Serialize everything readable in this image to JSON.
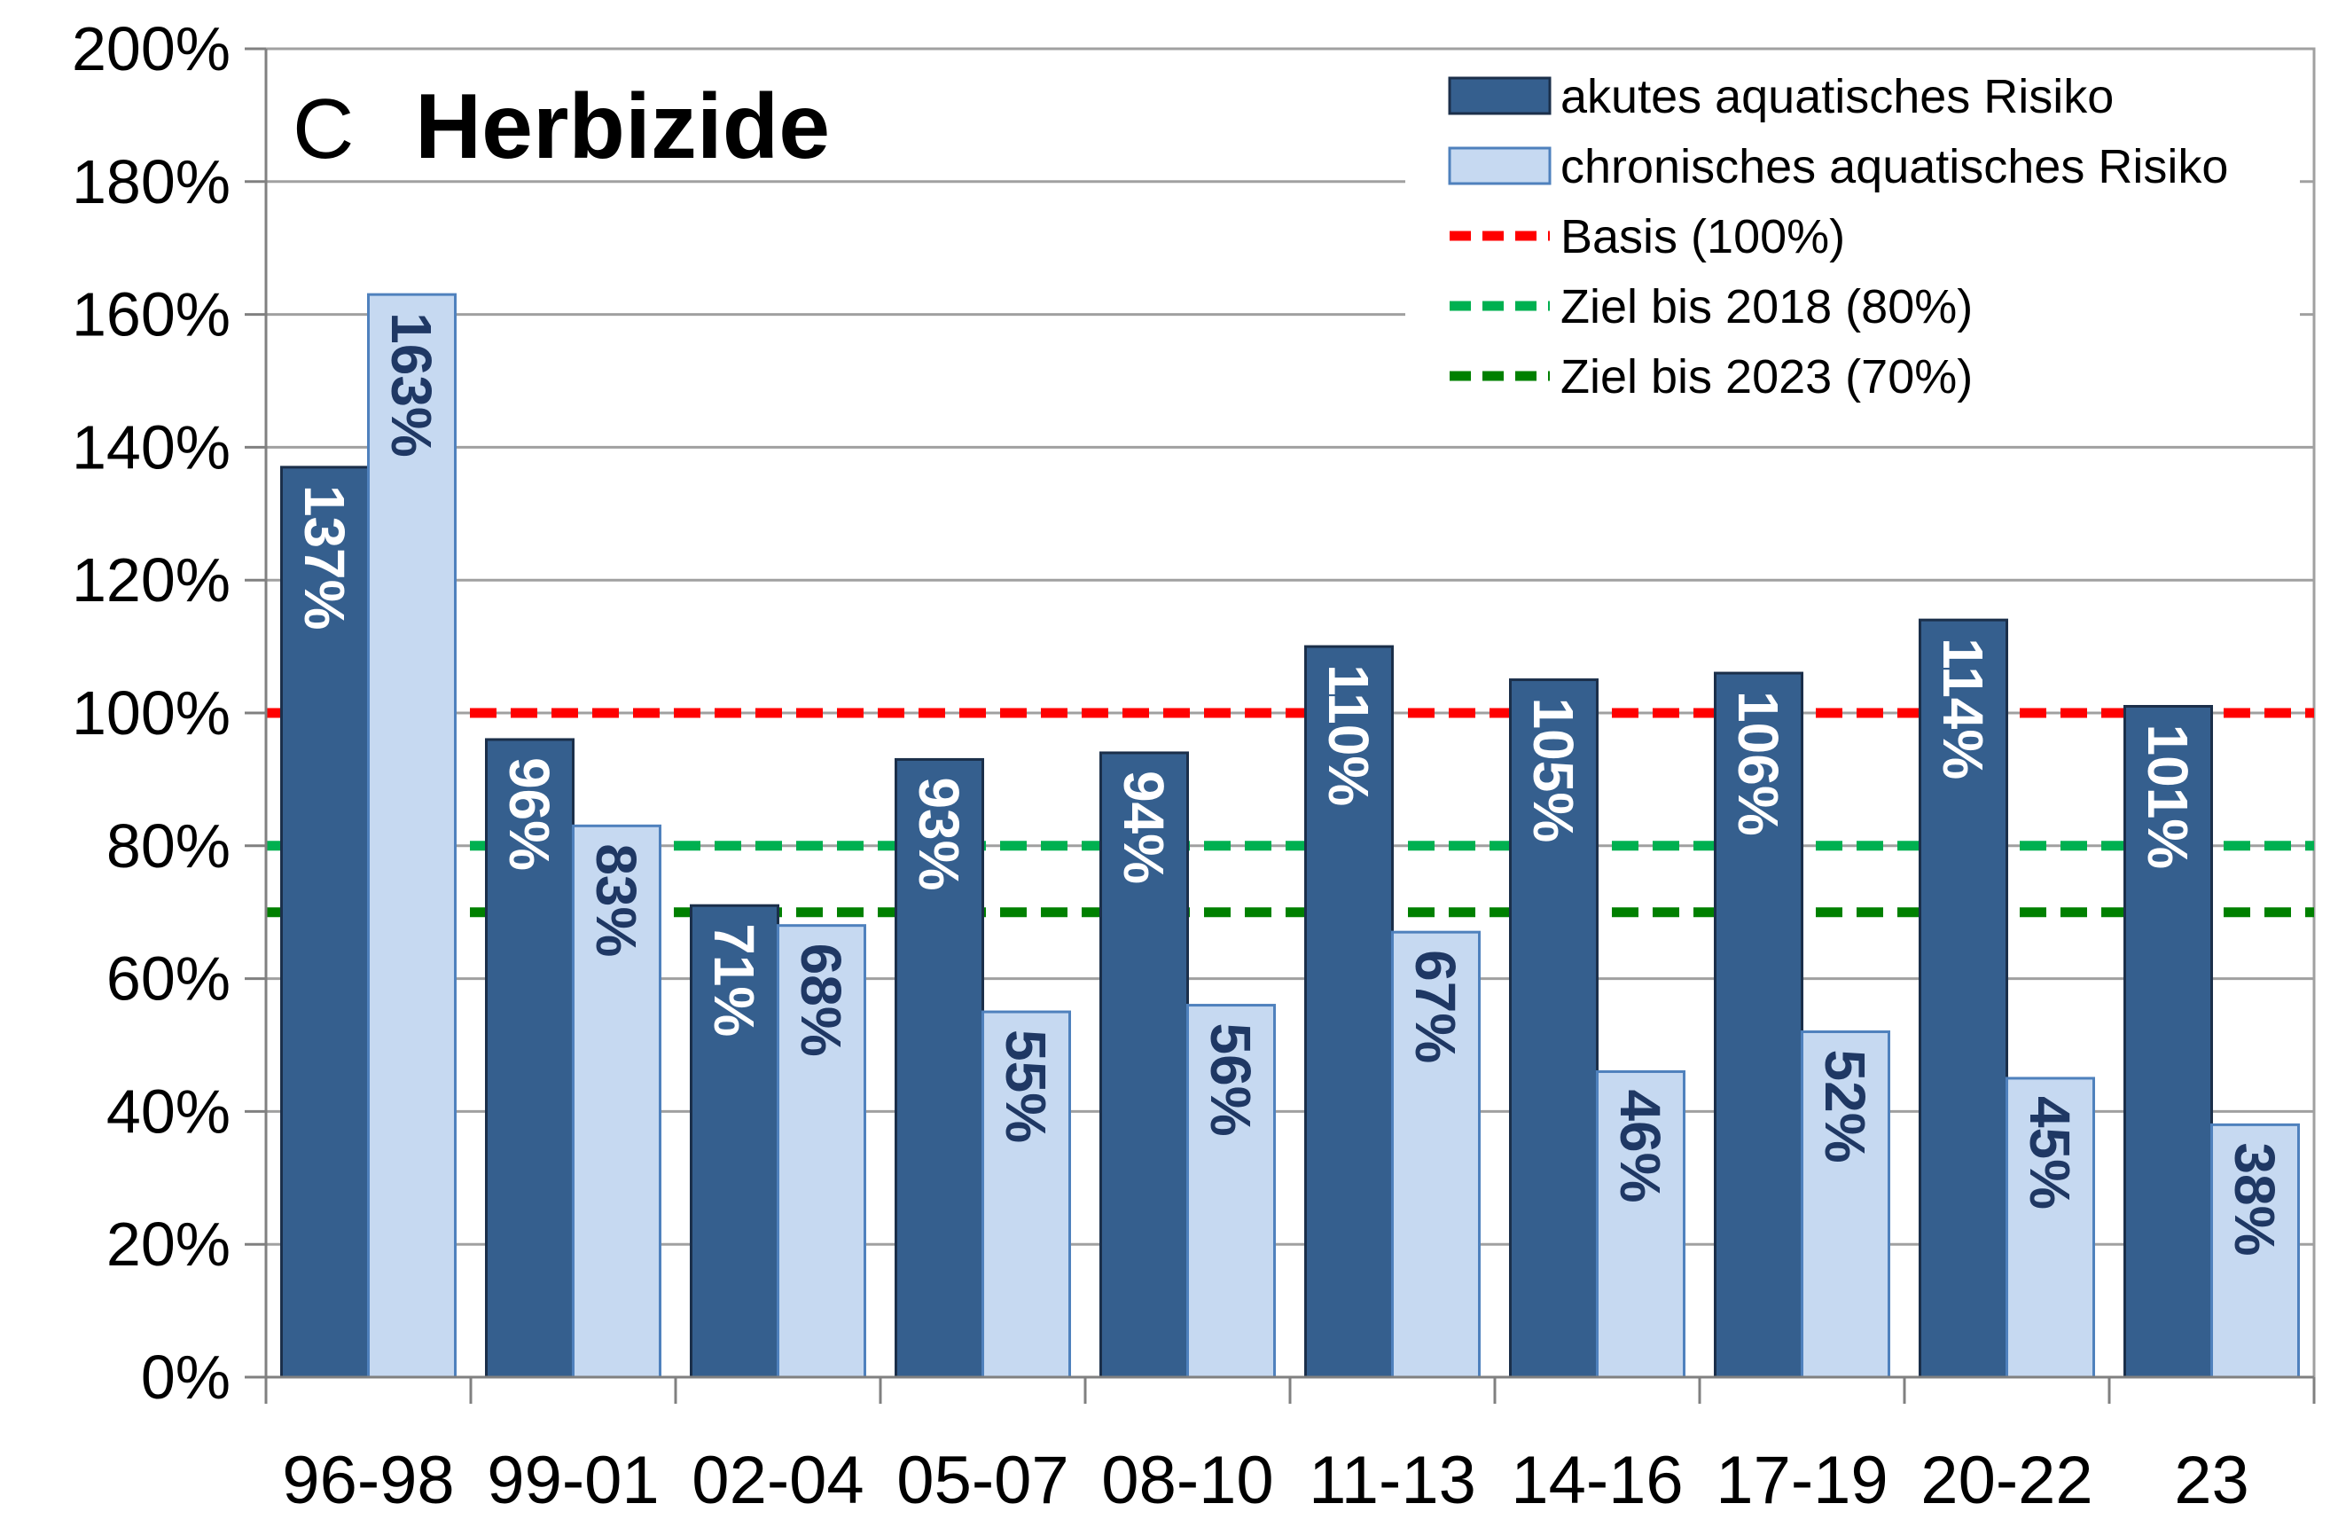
{
  "panel": {
    "letter": "C",
    "title": "Herbizide"
  },
  "legend": {
    "items": [
      {
        "label": "akutes aquatisches Risiko",
        "kind": "bar",
        "color": "#355F8E"
      },
      {
        "label": "chronisches aquatisches Risiko",
        "kind": "bar",
        "color": "#C6D9F1"
      },
      {
        "label": "Basis (100%)",
        "kind": "dashed-line",
        "color": "#FF0000"
      },
      {
        "label": "Ziel bis 2018 (80%)",
        "kind": "dashed-line",
        "color": "#00B050"
      },
      {
        "label": "Ziel bis 2023 (70%)",
        "kind": "dashed-line",
        "color": "#008000"
      }
    ]
  },
  "chart_data": {
    "type": "bar",
    "categories": [
      "96-98",
      "99-01",
      "02-04",
      "05-07",
      "08-10",
      "11-13",
      "14-16",
      "17-19",
      "20-22",
      "23"
    ],
    "series": [
      {
        "name": "akutes aquatisches Risiko",
        "color": "#355F8E",
        "values": [
          137,
          96,
          71,
          93,
          94,
          110,
          105,
          106,
          114,
          101
        ],
        "labels": [
          "137%",
          "96%",
          "71%",
          "93%",
          "94%",
          "110%",
          "105%",
          "106%",
          "114%",
          "101%"
        ]
      },
      {
        "name": "chronisches aquatisches Risiko",
        "color": "#C6D9F1",
        "values": [
          163,
          83,
          68,
          55,
          56,
          67,
          46,
          52,
          45,
          38
        ],
        "labels": [
          "163%",
          "83%",
          "68%",
          "55%",
          "56%",
          "67%",
          "46%",
          "52%",
          "45%",
          "38%"
        ]
      }
    ],
    "reference_lines": [
      {
        "name": "Basis (100%)",
        "value": 100,
        "color": "#FF0000"
      },
      {
        "name": "Ziel bis 2018 (80%)",
        "value": 80,
        "color": "#00B050"
      },
      {
        "name": "Ziel bis 2023 (70%)",
        "value": 70,
        "color": "#008000"
      }
    ],
    "y_ticks": [
      "0%",
      "20%",
      "40%",
      "60%",
      "80%",
      "100%",
      "120%",
      "140%",
      "160%",
      "180%",
      "200%"
    ],
    "ylim": [
      0,
      200
    ],
    "grid": true,
    "legend_position": "top-right",
    "xlabel": "",
    "ylabel": ""
  }
}
